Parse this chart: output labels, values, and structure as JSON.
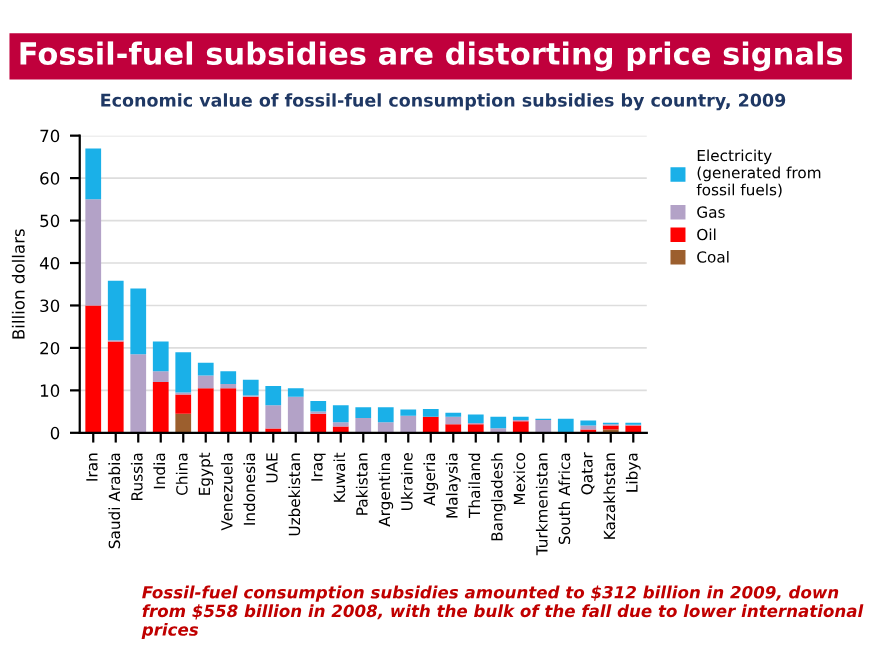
{
  "chart_data": {
    "type": "bar",
    "stacked": true,
    "title": "Fossil-fuel subsidies are distorting price signals",
    "subtitle": "Economic value of fossil-fuel consumption subsidies by country, 2009",
    "ylabel": "Billion dollars",
    "categories": [
      "Iran",
      "Saudi Arabia",
      "Russia",
      "India",
      "China",
      "Egypt",
      "Venezuela",
      "Indonesia",
      "UAE",
      "Uzbekistan",
      "Iraq",
      "Kuwait",
      "Pakistan",
      "Argentina",
      "Ukraine",
      "Algeria",
      "Malaysia",
      "Thailand",
      "Bangladesh",
      "Mexico",
      "Turkmenistan",
      "South Africa",
      "Qatar",
      "Kazakhstan",
      "Libya"
    ],
    "series": [
      {
        "name": "Coal",
        "color": "#9c5f2e",
        "values": [
          0,
          0,
          0,
          0,
          4.5,
          0,
          0,
          0,
          0,
          0,
          0,
          0,
          0,
          0,
          0,
          0,
          0,
          0,
          0,
          0,
          0,
          0,
          0,
          0.8,
          0
        ]
      },
      {
        "name": "Oil",
        "color": "#ff0000",
        "values": [
          30,
          21.5,
          0,
          12,
          4.5,
          10.5,
          10.5,
          8.5,
          1,
          0,
          4.5,
          1.5,
          0,
          0,
          0,
          3.8,
          2,
          2,
          0,
          2.7,
          0,
          0,
          0.8,
          0.9,
          1.7
        ]
      },
      {
        "name": "Gas",
        "color": "#b3a2c7",
        "values": [
          25,
          0.3,
          18.5,
          2.5,
          0.5,
          3,
          1,
          0.3,
          5.5,
          8.5,
          0.5,
          1,
          3.5,
          2.5,
          4,
          0,
          1.8,
          0.3,
          1.1,
          0.3,
          3,
          0,
          0.9,
          0.3,
          0.2
        ]
      },
      {
        "name": "Electricity\n(generated from\nfossil fuels)",
        "color": "#1ab0e8",
        "values": [
          12,
          14,
          15.5,
          7,
          9.5,
          3,
          3,
          3.7,
          4.5,
          2,
          2.5,
          4,
          2.5,
          3.5,
          1.5,
          1.8,
          0.9,
          2,
          2.7,
          0.8,
          0.3,
          3.3,
          1.2,
          0.4,
          0.5
        ]
      }
    ],
    "ylim": [
      0,
      70
    ],
    "yticks": [
      0,
      10,
      20,
      30,
      40,
      50,
      60,
      70
    ],
    "grid": "y",
    "legend": "right",
    "annotations": [
      "Fossil-fuel consumption subsidies amounted to $312 billion in 2009, down from $558 billion in 2008, with the bulk of the fall due to lower international prices"
    ]
  }
}
